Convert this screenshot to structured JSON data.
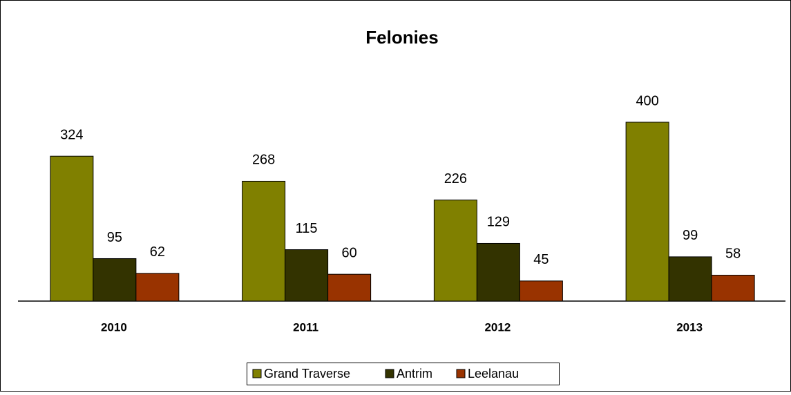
{
  "chart_data": {
    "type": "bar",
    "title": "Felonies",
    "categories": [
      "2010",
      "2011",
      "2012",
      "2013"
    ],
    "series": [
      {
        "name": "Grand Traverse",
        "color": "#808000",
        "values": [
          324,
          268,
          226,
          400
        ]
      },
      {
        "name": "Antrim",
        "color": "#333300",
        "values": [
          95,
          115,
          129,
          99
        ]
      },
      {
        "name": "Leelanau",
        "color": "#993300",
        "values": [
          62,
          60,
          45,
          58
        ]
      }
    ],
    "ylim": [
      0,
      450
    ]
  }
}
